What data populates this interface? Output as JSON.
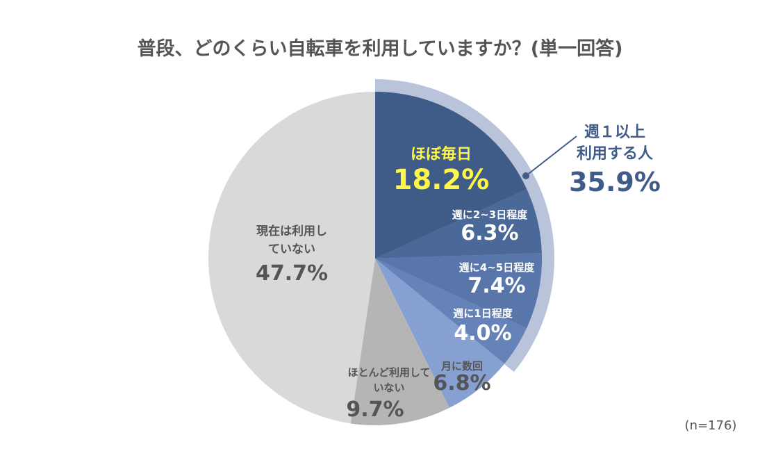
{
  "chart_data": {
    "type": "pie",
    "title": "普段、どのくらい自転車を利用していますか？(単一回答)",
    "note": "(n=176)",
    "start": "top",
    "direction": "clockwise",
    "slices": [
      {
        "label": "ほぼ毎日",
        "value": 18.2,
        "display": "18.2%",
        "color": "#3f5b88",
        "text_color": "#fff64a"
      },
      {
        "label": "週に2~3日程度",
        "value": 6.3,
        "display": "6.3%",
        "color": "#4a6898",
        "text_color": "#ffffff"
      },
      {
        "label": "週に4~5日程度",
        "value": 7.4,
        "display": "7.4%",
        "color": "#5876aa",
        "text_color": "#ffffff"
      },
      {
        "label": "週に1日程度",
        "value": 4.0,
        "display": "4.0%",
        "color": "#6582b9",
        "text_color": "#ffffff"
      },
      {
        "label": "月に数回",
        "value": 6.8,
        "display": "6.8%",
        "color": "#86a0d2",
        "text_color": "#555555"
      },
      {
        "label": "ほとんど利用していない",
        "value": 9.7,
        "display": "9.7%",
        "color": "#b5b5b5",
        "text_color": "#555555"
      },
      {
        "label": "現在は利用していない",
        "value": 47.7,
        "display": "47.7%",
        "color": "#d9d9d9",
        "text_color": "#555555"
      }
    ],
    "group": {
      "label_line1": "週１以上",
      "label_line2": "利用する人",
      "value": 35.9,
      "display": "35.9%",
      "color": "#b9c4db",
      "text_color": "#3f5b88"
    }
  }
}
